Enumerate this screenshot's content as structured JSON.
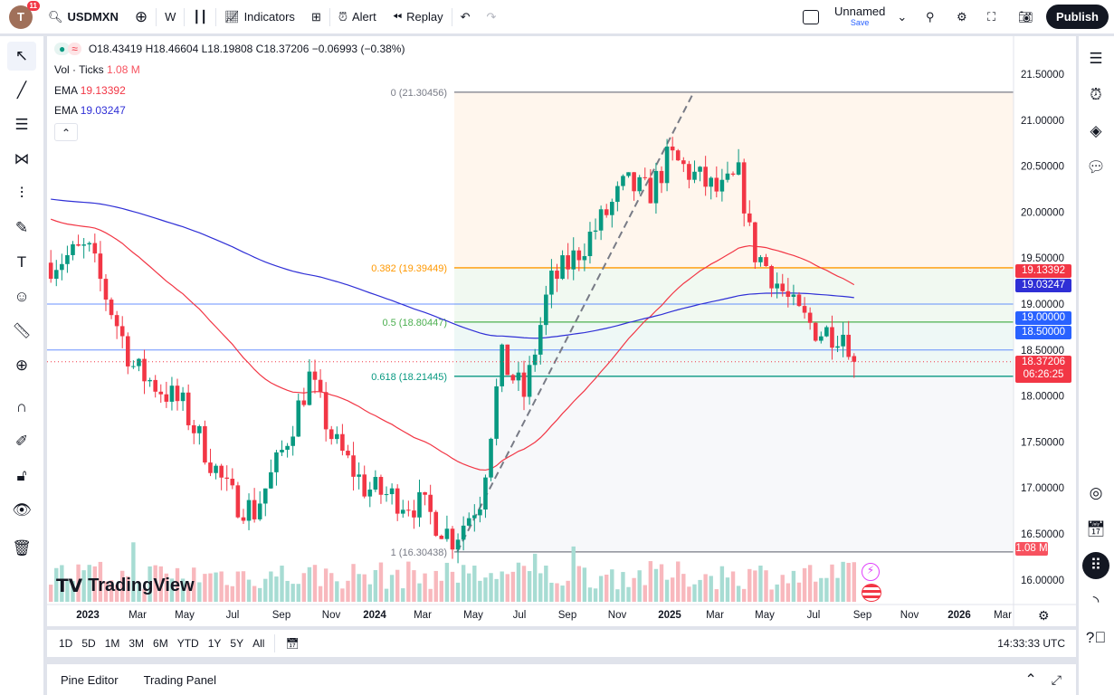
{
  "topbar": {
    "notifications": "11",
    "avatar_letter": "T",
    "symbol": "USDMXN",
    "interval": "W",
    "indicators": "Indicators",
    "alert": "Alert",
    "replay": "Replay",
    "layout_name": "Unnamed",
    "layout_save": "Save",
    "publish": "Publish"
  },
  "legend": {
    "ohlc": "O18.43419 H18.46604 L18.19808 C18.37206 −0.06993 (−0.38%)",
    "vol_label": "Vol · Ticks",
    "vol_value": "1.08 M",
    "ema1_label": "EMA",
    "ema1_value": "19.13392",
    "ema2_label": "EMA",
    "ema2_value": "19.03247"
  },
  "colors": {
    "up": "#089981",
    "down": "#f23645",
    "ema_fast": "#f23645",
    "ema_slow": "#2f2fd6",
    "fib_0382": "#ff9800",
    "fib_05": "#4caf50",
    "fib_0618": "#089981",
    "hline": "#2962ff"
  },
  "fib": [
    {
      "label": "0 (21.30456)",
      "level": 21.30456
    },
    {
      "label": "0.382 (19.39449)",
      "level": 19.39449
    },
    {
      "label": "0.5 (18.80447)",
      "level": 18.80447
    },
    {
      "label": "0.618 (18.21445)",
      "level": 18.21445
    },
    {
      "label": "1 (16.30438)",
      "level": 16.30438
    }
  ],
  "hlines": [
    19.0,
    18.5
  ],
  "price_axis": [
    "21.50000",
    "21.00000",
    "20.50000",
    "20.00000",
    "19.50000",
    "19.00000",
    "18.50000",
    "18.00000",
    "17.50000",
    "17.00000",
    "16.50000",
    "16.00000"
  ],
  "price_labels": {
    "ema_fast": "19.13392",
    "ema_slow": "19.03247",
    "h1": "19.00000",
    "h2": "18.50000",
    "last": "18.37206",
    "countdown": "06:26:25",
    "volume": "1.08 M"
  },
  "time_axis": [
    "2023",
    "Mar",
    "May",
    "Jul",
    "Sep",
    "Nov",
    "2024",
    "Mar",
    "May",
    "Jul",
    "Sep",
    "Nov",
    "2025",
    "Mar",
    "May",
    "Jul",
    "Sep",
    "Nov",
    "2026",
    "Mar"
  ],
  "price_path": [
    [
      "2022-11-15",
      19.45
    ],
    [
      "2023-01-01",
      19.6
    ],
    [
      "2023-03-01",
      18.3
    ],
    [
      "2023-05-01",
      17.9
    ],
    [
      "2023-07-01",
      16.9
    ],
    [
      "2023-08-01",
      16.75
    ],
    [
      "2023-09-01",
      17.3
    ],
    [
      "2023-10-10",
      18.2
    ],
    [
      "2023-11-10",
      17.5
    ],
    [
      "2023-12-20",
      17.0
    ],
    [
      "2024-03-01",
      16.8
    ],
    [
      "2024-04-10",
      16.45
    ],
    [
      "2024-05-15",
      16.9
    ],
    [
      "2024-06-10",
      18.4
    ],
    [
      "2024-07-10",
      18.0
    ],
    [
      "2024-08-10",
      19.2
    ],
    [
      "2024-09-10",
      19.5
    ],
    [
      "2024-10-15",
      19.9
    ],
    [
      "2024-11-15",
      20.3
    ],
    [
      "2024-12-15",
      20.2
    ],
    [
      "2025-01-10",
      20.6
    ],
    [
      "2025-02-10",
      20.4
    ],
    [
      "2025-03-15",
      20.2
    ],
    [
      "2025-04-10",
      20.4
    ],
    [
      "2025-04-25",
      19.6
    ],
    [
      "2025-05-15",
      19.4
    ],
    [
      "2025-06-20",
      18.9
    ],
    [
      "2025-07-20",
      18.7
    ],
    [
      "2025-08-20",
      18.7
    ],
    [
      "2025-09-08",
      18.37
    ]
  ],
  "bottombar": {
    "ranges": [
      "1D",
      "5D",
      "1M",
      "3M",
      "6M",
      "YTD",
      "1Y",
      "5Y",
      "All"
    ],
    "clock": "14:33:33 UTC"
  },
  "panel": {
    "pine": "Pine Editor",
    "trading": "Trading Panel"
  },
  "watermark": "TradingView"
}
